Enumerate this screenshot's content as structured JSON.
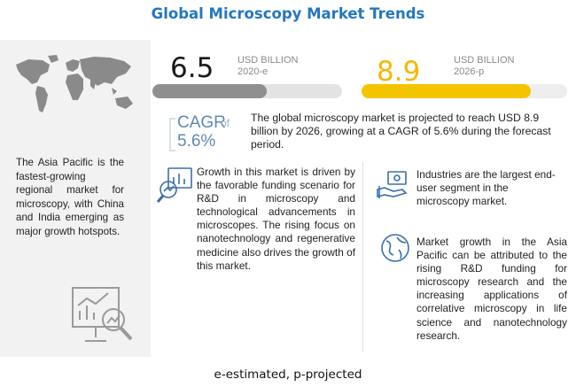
{
  "title": "Global Microscopy Market Trends",
  "left_panel": {
    "text": "The Asia Pacific is the fastest-growing regional market for microscopy, with China and India emerging as major growth hotspots.",
    "icons": [
      "world-map-icon",
      "growth-analysis-icon"
    ]
  },
  "chart_data": {
    "type": "bar",
    "categories": [
      "2020-e",
      "2026-p"
    ],
    "values": [
      6.5,
      8.9
    ],
    "value_labels": [
      "6.5",
      "8.9"
    ],
    "unit": "USD BILLION",
    "title": "",
    "xlabel": "",
    "ylabel": "",
    "orientation": "horizontal",
    "colors": [
      "#8f8f8f",
      "#f5c400"
    ]
  },
  "cagr": {
    "label": "CAGR",
    "of": "of",
    "value": "5.6%",
    "text": "The global microscopy market is projected to reach USD 8.9 billion by 2026, growing at a CAGR of 5.6% during the forecast period."
  },
  "blocks": {
    "funding": "Growth in this market is driven by the favorable funding scenario for R&D in microscopy and technological advancements in microscopes. The rising focus on nanotechnology and regenerative medicine also drives the growth of this market.",
    "industry": "Industries are the largest end-user segment in the microscopy market.",
    "asia": "Market growth in the Asia Pacific can be attributed to the rising R&D funding for microscopy research and the increasing applications of correlative microscopy in life science and nanotechnology research."
  },
  "footer": "e-estimated, p-projected",
  "colors": {
    "title": "#2477bf",
    "cagr": "#5f89b5",
    "accent_yellow": "#f5c400",
    "bar_grey": "#8f8f8f"
  }
}
